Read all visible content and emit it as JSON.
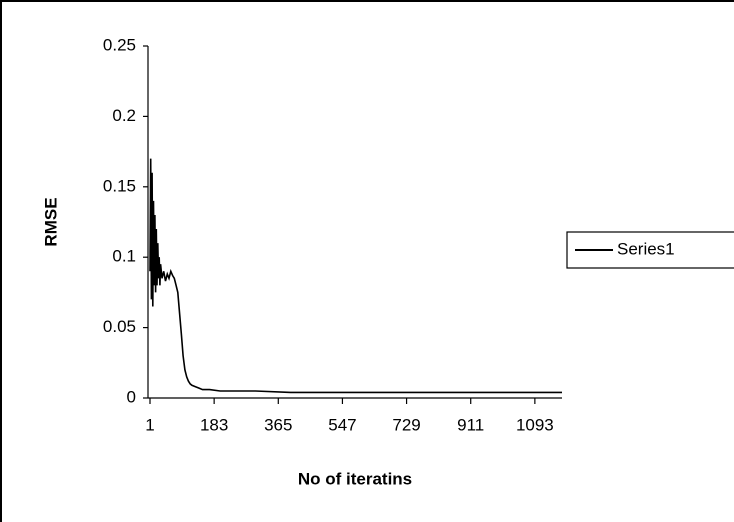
{
  "chart_data": {
    "type": "line",
    "x_label": "No of iteratins",
    "y_label": "RMSE",
    "x": [
      1,
      3,
      5,
      7,
      9,
      11,
      13,
      15,
      17,
      19,
      21,
      23,
      25,
      27,
      29,
      31,
      35,
      40,
      45,
      50,
      55,
      60,
      65,
      70,
      75,
      80,
      85,
      90,
      95,
      100,
      105,
      110,
      115,
      120,
      130,
      140,
      150,
      170,
      200,
      250,
      300,
      400,
      500,
      600,
      800,
      1000,
      1170
    ],
    "series": [
      {
        "name": "Series1",
        "color": "#000000",
        "values": [
          0.09,
          0.17,
          0.07,
          0.16,
          0.065,
          0.14,
          0.08,
          0.13,
          0.075,
          0.12,
          0.08,
          0.11,
          0.085,
          0.1,
          0.08,
          0.095,
          0.085,
          0.09,
          0.083,
          0.088,
          0.085,
          0.09,
          0.087,
          0.085,
          0.08,
          0.075,
          0.06,
          0.045,
          0.03,
          0.02,
          0.015,
          0.012,
          0.01,
          0.009,
          0.008,
          0.007,
          0.006,
          0.006,
          0.005,
          0.005,
          0.005,
          0.004,
          0.004,
          0.004,
          0.004,
          0.004,
          0.004
        ]
      }
    ],
    "xlim": [
      1,
      1170
    ],
    "xticks": [
      1,
      183,
      365,
      547,
      729,
      911,
      1093
    ],
    "ylim": [
      0,
      0.25
    ],
    "yticks": [
      0,
      0.05,
      0.1,
      0.15,
      0.2,
      0.25
    ],
    "legend": "right"
  }
}
